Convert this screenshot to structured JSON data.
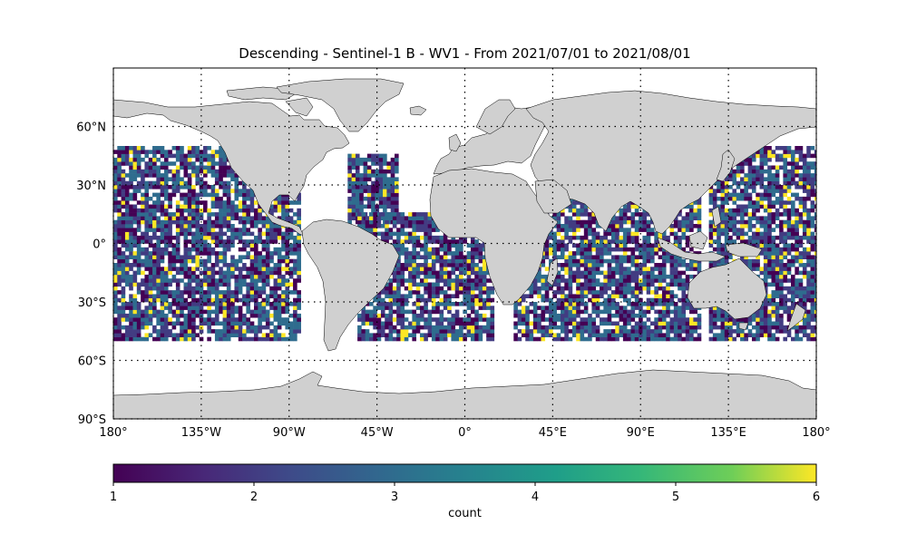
{
  "title": "Descending - Sentinel-1 B - WV1 - From 2021/07/01 to 2021/08/01",
  "map": {
    "projection": "plate-carree",
    "lon_range": [
      -180,
      180
    ],
    "lat_range": [
      -90,
      90
    ],
    "land_color": "#d0d0d0",
    "gridlines": "dotted",
    "lat_ticks": [
      "90°S",
      "60°S",
      "30°S",
      "0°",
      "30°N",
      "60°N"
    ],
    "lon_ticks": [
      "180°",
      "135°W",
      "90°W",
      "45°W",
      "0°",
      "45°E",
      "90°E",
      "135°E",
      "180°"
    ]
  },
  "colorbar": {
    "label": "count",
    "colormap": "viridis",
    "range": [
      1,
      6
    ],
    "ticks": [
      "1",
      "2",
      "3",
      "4",
      "5",
      "6"
    ]
  },
  "chart_data": {
    "type": "heatmap",
    "title": "Descending - Sentinel-1 B - WV1 - From 2021/07/01 to 2021/08/01",
    "value_label": "count",
    "value_range": [
      1,
      6
    ],
    "grid_resolution_deg": 2,
    "lat_coverage": [
      -50,
      50
    ],
    "regions_with_data": [
      {
        "lon": [
          -180,
          -85
        ],
        "lat": [
          -50,
          50
        ]
      },
      {
        "lon": [
          -60,
          -35
        ],
        "lat": [
          10,
          45
        ]
      },
      {
        "lon": [
          -55,
          15
        ],
        "lat": [
          -50,
          15
        ]
      },
      {
        "lon": [
          25,
          120
        ],
        "lat": [
          -50,
          25
        ]
      },
      {
        "lon": [
          125,
          180
        ],
        "lat": [
          -50,
          50
        ]
      }
    ]
  }
}
